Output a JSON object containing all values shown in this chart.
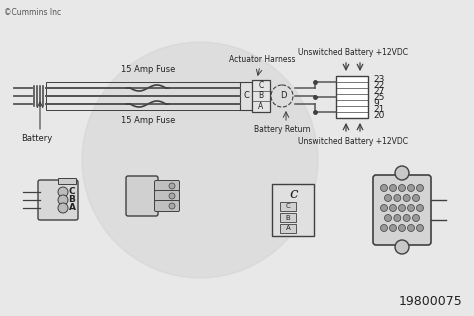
{
  "fig_bg": "#e8e8e8",
  "title": "©Cummins Inc",
  "diagram_number": "19800075",
  "label_15amp_fuse1": "15 Amp Fuse",
  "label_15amp_fuse2": "15 Amp Fuse",
  "label_battery": "Battery",
  "label_actuator": "Actuator Harness",
  "label_battery_return": "Battery Return",
  "label_unswitched1": "Unswitched Battery +12VDC",
  "label_unswitched2": "Unswitched Battery +12VDC",
  "pin_labels": [
    "23",
    "22",
    "27",
    "25",
    "9",
    "21",
    "20"
  ],
  "line_color": "#404040",
  "text_color": "#222222",
  "wire_color": "#555555",
  "bg_circle_color": "#d0d0d0"
}
